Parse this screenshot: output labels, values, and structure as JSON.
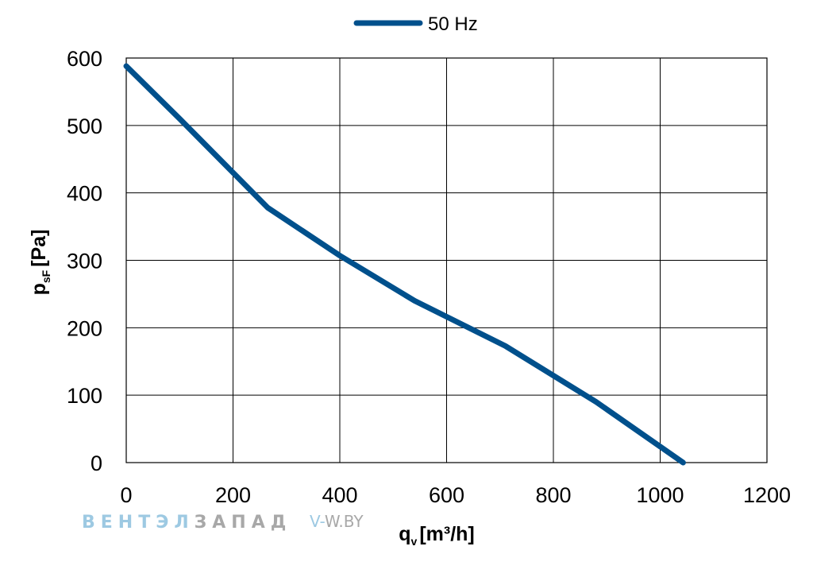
{
  "chart_data": {
    "type": "line",
    "title": "",
    "xlabel": "q",
    "xlabel_sub": "v",
    "xlabel_unit": "[m³/h]",
    "ylabel": "p",
    "ylabel_sub": "sF",
    "ylabel_unit": "[Pa]",
    "xlim": [
      0,
      1200
    ],
    "ylim": [
      0,
      600
    ],
    "xticks": [
      0,
      200,
      400,
      600,
      800,
      1000,
      1200
    ],
    "yticks": [
      0,
      100,
      200,
      300,
      400,
      500,
      600
    ],
    "grid": true,
    "legend_position": "top-center",
    "series": [
      {
        "name": "50 Hz",
        "color": "#00508c",
        "x": [
          0,
          100,
          200,
          265,
          400,
          540,
          710,
          880,
          1043
        ],
        "y": [
          588,
          510,
          430,
          378,
          307,
          240,
          173,
          90,
          0
        ]
      }
    ]
  },
  "watermark": {
    "brand_part1": "ВЕНТЭЛ",
    "brand_part2": "ЗАПАД",
    "site_prefix": "V-",
    "site_rest": "W.BY",
    "color1": "#8cc0de",
    "color2": "#9a9a9a"
  }
}
